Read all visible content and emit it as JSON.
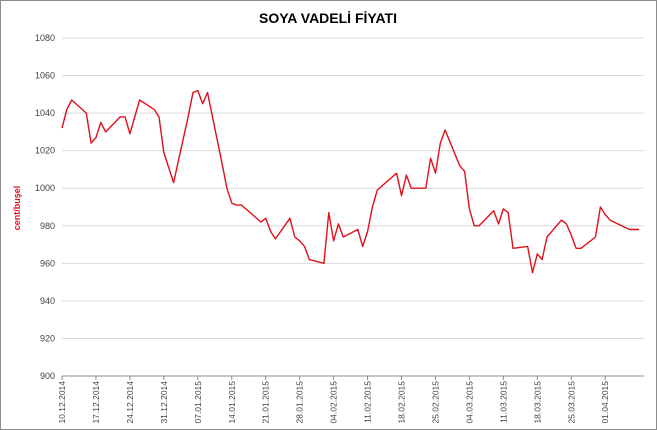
{
  "chart_data": {
    "type": "line",
    "title": "SOYA VADELİ FİYATI",
    "ylabel": "cent/buşel",
    "xlabel": "",
    "ylim": [
      900,
      1080
    ],
    "yticks": [
      900,
      920,
      940,
      960,
      980,
      1000,
      1020,
      1040,
      1060,
      1080
    ],
    "grid": true,
    "legend": "none",
    "line_color": "#e0101a",
    "xtick_labels": [
      "10.12.2014",
      "17.12.2014",
      "24.12.2014",
      "31.12.2014",
      "07.01.2015",
      "14.01.2015",
      "21.01.2015",
      "28.01.2015",
      "04.02.2015",
      "11.02.2015",
      "18.02.2015",
      "25.02.2015",
      "04.03.2015",
      "11.03.2015",
      "18.03.2015",
      "25.03.2015",
      "01.04.2015"
    ],
    "x": [
      "10.12.2014",
      "11.12.2014",
      "12.12.2014",
      "15.12.2014",
      "16.12.2014",
      "17.12.2014",
      "18.12.2014",
      "19.12.2014",
      "22.12.2014",
      "23.12.2014",
      "24.12.2014",
      "26.12.2014",
      "29.12.2014",
      "30.12.2014",
      "31.12.2014",
      "02.01.2015",
      "05.01.2015",
      "06.01.2015",
      "07.01.2015",
      "08.01.2015",
      "09.01.2015",
      "12.01.2015",
      "13.01.2015",
      "14.01.2015",
      "15.01.2015",
      "16.01.2015",
      "20.01.2015",
      "21.01.2015",
      "22.01.2015",
      "23.01.2015",
      "26.01.2015",
      "27.01.2015",
      "28.01.2015",
      "29.01.2015",
      "30.01.2015",
      "02.02.2015",
      "03.02.2015",
      "04.02.2015",
      "05.02.2015",
      "06.02.2015",
      "09.02.2015",
      "10.02.2015",
      "11.02.2015",
      "12.02.2015",
      "13.02.2015",
      "17.02.2015",
      "18.02.2015",
      "19.02.2015",
      "20.02.2015",
      "23.02.2015",
      "24.02.2015",
      "25.02.2015",
      "26.02.2015",
      "27.02.2015",
      "02.03.2015",
      "03.03.2015",
      "04.03.2015",
      "05.03.2015",
      "06.03.2015",
      "09.03.2015",
      "10.03.2015",
      "11.03.2015",
      "12.03.2015",
      "13.03.2015",
      "16.03.2015",
      "17.03.2015",
      "18.03.2015",
      "19.03.2015",
      "20.03.2015",
      "23.03.2015",
      "24.03.2015",
      "25.03.2015",
      "26.03.2015",
      "27.03.2015",
      "30.03.2015",
      "31.03.2015",
      "01.04.2015",
      "02.04.2015",
      "06.04.2015",
      "07.04.2015",
      "08.04.2015"
    ],
    "series": [
      {
        "values": [
          1032,
          1042,
          1047,
          1040,
          1024,
          1027,
          1035,
          1030,
          1038,
          1038,
          1029,
          1047,
          1042,
          1038,
          1019,
          1003,
          1038,
          1051,
          1052,
          1045,
          1051,
          1013,
          1000,
          992,
          991,
          991,
          982,
          984,
          977,
          973,
          984,
          974,
          972,
          969,
          962,
          960,
          987,
          972,
          981,
          974,
          978,
          969,
          977,
          990,
          999,
          1008,
          996,
          1007,
          1000,
          1000,
          1016,
          1008,
          1024,
          1031,
          1012,
          1009,
          989,
          980,
          980,
          988,
          981,
          989,
          987,
          968,
          969,
          955,
          965,
          962,
          974,
          983,
          981,
          975,
          968,
          968,
          974,
          990,
          986,
          983,
          978,
          978,
          978
        ]
      }
    ]
  }
}
